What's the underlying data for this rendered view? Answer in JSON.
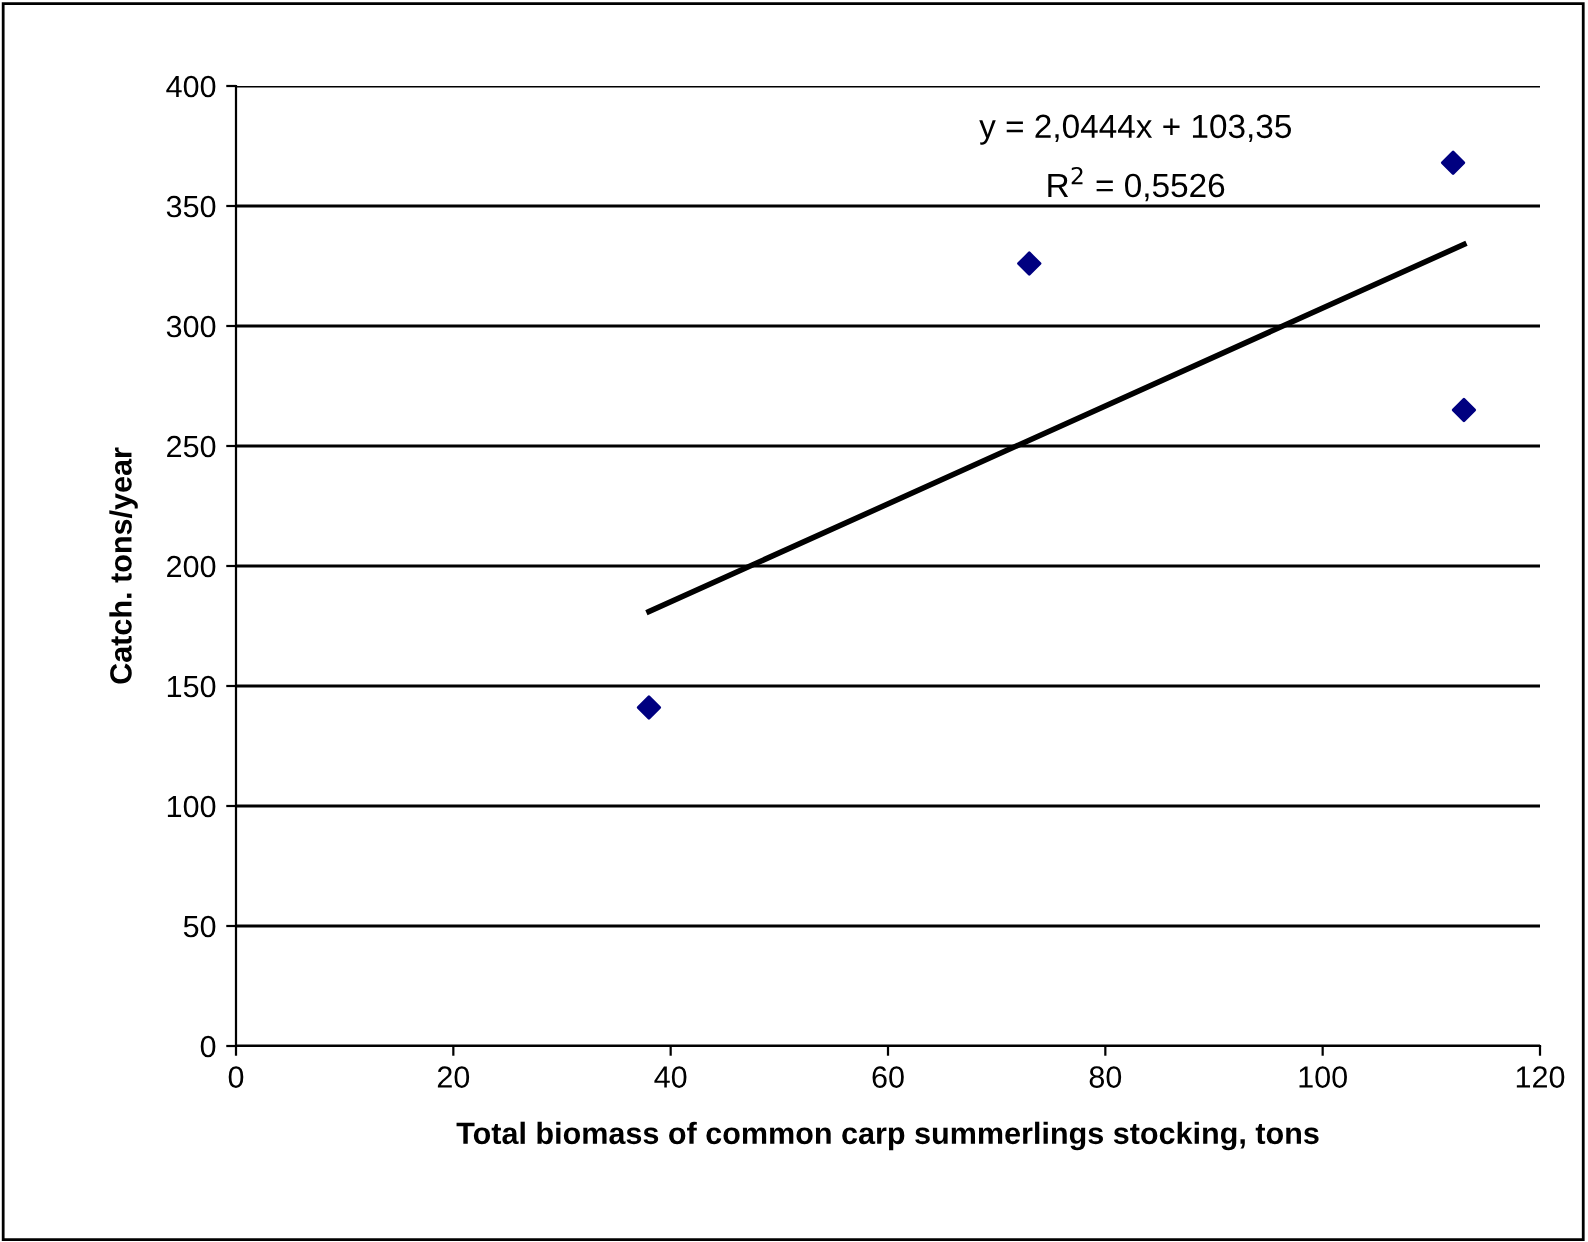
{
  "chart_data": {
    "type": "scatter",
    "xlabel": "Total biomass of common carp summerlings stocking, tons",
    "ylabel": "Catch. tons/year",
    "xlim": [
      0,
      120
    ],
    "xticks": [
      0,
      20,
      40,
      60,
      80,
      100,
      120
    ],
    "ylim": [
      0,
      400
    ],
    "yticks": [
      0,
      50,
      100,
      150,
      200,
      250,
      300,
      350,
      400
    ],
    "grid": "y",
    "legend": false,
    "series": [
      {
        "color": "#000080",
        "marker": "diamond",
        "x": [
          38,
          73,
          112,
          113
        ],
        "values": [
          141,
          326,
          368,
          265
        ]
      },
      {
        "type": "line",
        "color": "#000000",
        "x": [
          38,
          113
        ],
        "values": [
          181,
          334
        ],
        "line_style": "solid",
        "marker": "none"
      }
    ],
    "annotations": [
      "y = 2,0444x + 103,35",
      "R$^{2}$ = 0,5526"
    ]
  }
}
